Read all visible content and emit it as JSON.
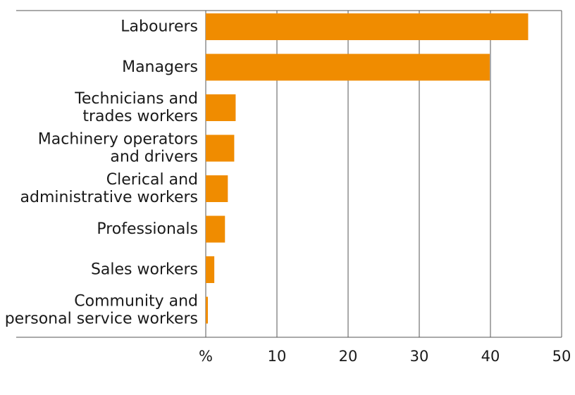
{
  "chart_data": {
    "type": "bar",
    "orientation": "horizontal",
    "categories": [
      [
        "Labourers"
      ],
      [
        "Managers"
      ],
      [
        "Technicians and",
        "trades workers"
      ],
      [
        "Machinery operators",
        "and drivers"
      ],
      [
        "Clerical and",
        "administrative workers"
      ],
      [
        "Professionals"
      ],
      [
        "Sales workers"
      ],
      [
        "Community and",
        "personal service workers"
      ]
    ],
    "values": [
      45.3,
      39.9,
      4.2,
      4.0,
      3.1,
      2.7,
      1.2,
      0.3
    ],
    "xlim": [
      0,
      50
    ],
    "xticks": [
      {
        "value": 0,
        "label": "%"
      },
      {
        "value": 10,
        "label": "10"
      },
      {
        "value": 20,
        "label": "20"
      },
      {
        "value": 30,
        "label": "30"
      },
      {
        "value": 40,
        "label": "40"
      },
      {
        "value": 50,
        "label": "50"
      }
    ],
    "grid": true,
    "bar_color": "#f08c00",
    "grid_color": "#555555"
  }
}
